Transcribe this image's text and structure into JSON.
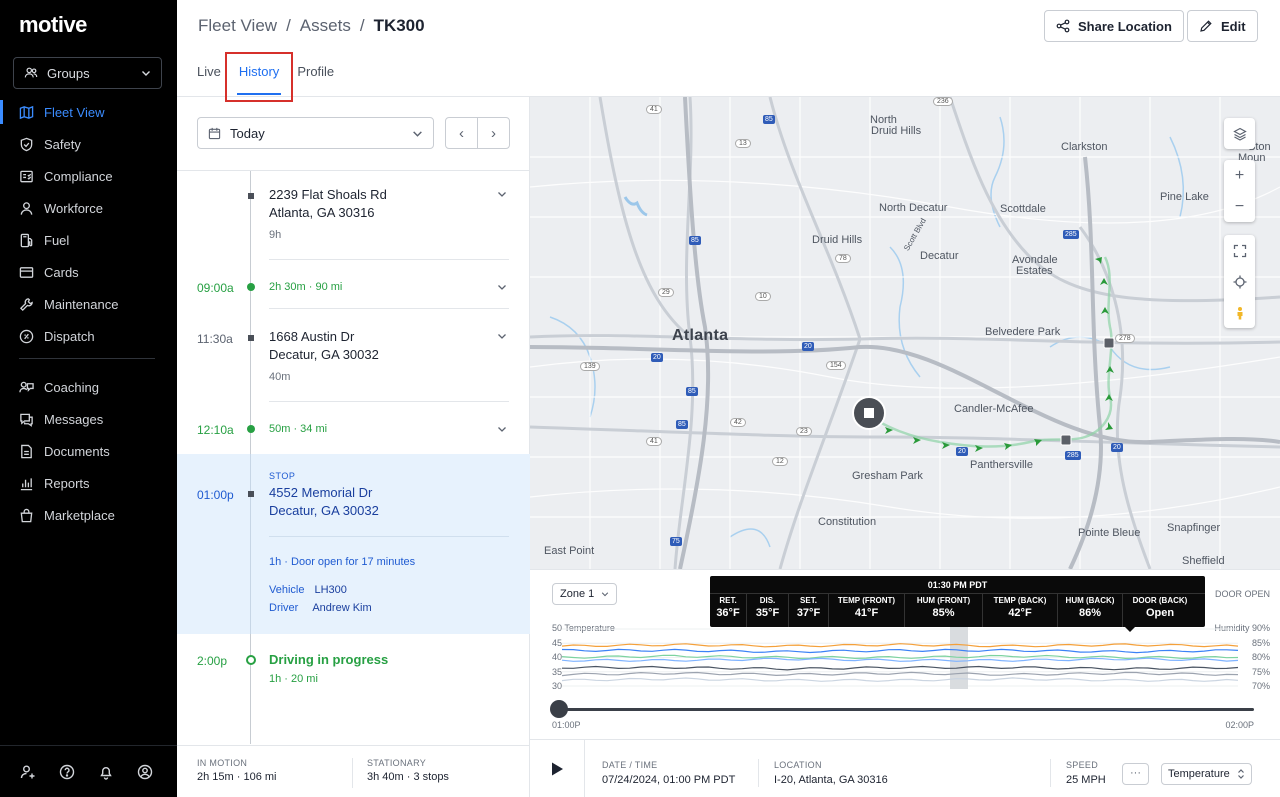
{
  "app": {
    "logo": "motive"
  },
  "sidebar": {
    "groups_label": "Groups",
    "items": [
      {
        "label": "Fleet View",
        "icon": "map-icon",
        "active": true
      },
      {
        "label": "Safety",
        "icon": "shield-icon"
      },
      {
        "label": "Compliance",
        "icon": "compliance-icon"
      },
      {
        "label": "Workforce",
        "icon": "person-icon"
      },
      {
        "label": "Fuel",
        "icon": "fuel-icon"
      },
      {
        "label": "Cards",
        "icon": "card-icon"
      },
      {
        "label": "Maintenance",
        "icon": "wrench-icon"
      },
      {
        "label": "Dispatch",
        "icon": "dispatch-icon"
      }
    ],
    "items2": [
      {
        "label": "Coaching",
        "icon": "coaching-icon"
      },
      {
        "label": "Messages",
        "icon": "message-icon"
      },
      {
        "label": "Documents",
        "icon": "document-icon"
      },
      {
        "label": "Reports",
        "icon": "reports-icon"
      },
      {
        "label": "Marketplace",
        "icon": "marketplace-icon"
      }
    ],
    "bottom_icons": [
      "user-settings-icon",
      "help-icon",
      "bell-icon",
      "account-icon"
    ]
  },
  "header": {
    "breadcrumb": [
      "Fleet View",
      "Assets",
      "TK300"
    ],
    "separator": "/",
    "share_label": "Share Location",
    "edit_label": "Edit",
    "tabs": [
      "Live",
      "History",
      "Profile"
    ],
    "active_tab": "History"
  },
  "left": {
    "date_label": "Today",
    "prev": "‹",
    "next": "›",
    "entries": {
      "e1": {
        "address1": "2239 Flat Shoals Rd",
        "address2": "Atlanta, GA 30316",
        "duration": "9h"
      },
      "e2": {
        "time": "09:00a",
        "summary": "2h 30m  ·  90 mi"
      },
      "e3": {
        "time": "11:30a",
        "address1": "1668 Austin Dr",
        "address2": "Decatur, GA 30032",
        "duration": "40m"
      },
      "e4": {
        "time": "12:10a",
        "summary": "50m  ·  34 mi"
      },
      "e5": {
        "time": "01:00p",
        "tag": "STOP",
        "address1": "4552 Memorial Dr",
        "address2": "Decatur, GA 30032",
        "detail": "1h  ·  Door open for 17 minutes",
        "vehicle_label": "Vehicle",
        "vehicle": "LH300",
        "driver_label": "Driver",
        "driver": "Andrew Kim"
      },
      "e6": {
        "time": "2:00p",
        "title": "Driving in progress",
        "summary": "1h  ·  20 mi"
      }
    },
    "stats": {
      "in_motion_label": "IN MOTION",
      "in_motion_value": "2h 15m  ·  106 mi",
      "stationary_label": "STATIONARY",
      "stationary_value": "3h 40m  ·  3 stops"
    }
  },
  "map": {
    "labels": {
      "atlanta": "Atlanta",
      "north_druid_hills_1": "North",
      "north_druid_hills_2": "Druid Hills",
      "clarkston": "Clarkston",
      "stone_mountain_1": "Ston",
      "stone_mountain_2": "Moun",
      "pine_lake": "Pine Lake",
      "north_decatur": "North Decatur",
      "scottdale": "Scottdale",
      "druid_hills": "Druid Hills",
      "decatur": "Decatur",
      "avondale_1": "Avondale",
      "avondale_2": "Estates",
      "belvedere": "Belvedere Park",
      "candler": "Candler-McAfee",
      "panthersville": "Panthersville",
      "gresham": "Gresham Park",
      "constitution": "Constitution",
      "pointe_bleue": "Pointe Bleue",
      "snapfinger": "Snapfinger",
      "east_point": "East Point",
      "sheffield": "Sheffield",
      "scott_blvd": "Scott Blvd"
    },
    "shields": {
      "s41a": "41",
      "s85a": "85",
      "s236": "236",
      "s85b": "85",
      "s285a": "285",
      "s78": "78",
      "s10": "10",
      "s29": "29",
      "s20a": "20",
      "s20b": "20",
      "s278": "278",
      "s139": "139",
      "s154": "154",
      "s85c": "85",
      "s42": "42",
      "s41b": "41",
      "s23": "23",
      "s85d": "85",
      "s20c": "20",
      "s285b": "285",
      "s20d": "20",
      "s12": "12",
      "s75": "75",
      "s13": "13"
    },
    "controls": [
      "layers-icon",
      "zoom-in-icon",
      "zoom-out-icon",
      "fullscreen-icon",
      "locate-icon",
      "street-view-icon"
    ]
  },
  "chart": {
    "zone_label": "Zone 1",
    "door_open_label": "DOOR OPEN",
    "tooltip": {
      "time": "01:30 PM PDT",
      "cells": [
        {
          "k": "RET.",
          "v": "36°F"
        },
        {
          "k": "DIS.",
          "v": "35°F"
        },
        {
          "k": "SET.",
          "v": "37°F"
        },
        {
          "k": "TEMP (FRONT)",
          "v": "41°F"
        },
        {
          "k": "HUM (FRONT)",
          "v": "85%"
        },
        {
          "k": "TEMP (BACK)",
          "v": "42°F"
        },
        {
          "k": "HUM (BACK)",
          "v": "86%"
        },
        {
          "k": "DOOR (BACK)",
          "v": "Open"
        }
      ]
    },
    "left_axis_title": "Temperature",
    "right_axis_title": "Humidity",
    "left_ticks": [
      "50",
      "45",
      "40",
      "35",
      "30"
    ],
    "right_ticks": [
      "90%",
      "85%",
      "80%",
      "75%",
      "70%"
    ],
    "time_start": "01:00P",
    "time_end": "02:00P"
  },
  "chart_data": {
    "type": "line",
    "x": [
      "01:00P",
      "01:10P",
      "01:20P",
      "01:30P",
      "01:40P",
      "01:50P",
      "02:00P"
    ],
    "series": [
      {
        "color": "#f4a03a",
        "values": [
          44,
          44.5,
          44,
          44.5,
          44,
          44.5,
          44
        ]
      },
      {
        "color": "#3b82f6",
        "values": [
          42.5,
          42.5,
          42,
          42.5,
          42.5,
          42,
          42.5
        ]
      },
      {
        "color": "#7dd3a0",
        "values": [
          40,
          40.5,
          40,
          40,
          40.5,
          40,
          40
        ]
      },
      {
        "color": "#7fb3ff",
        "values": [
          39,
          39,
          39.5,
          39,
          39,
          39.5,
          39
        ]
      },
      {
        "color": "#4b5563",
        "values": [
          36.5,
          36.5,
          36,
          36.5,
          36.5,
          36,
          36.5
        ]
      },
      {
        "color": "#9ca3af",
        "values": [
          34,
          34.5,
          34,
          34.5,
          34,
          34.5,
          34
        ]
      },
      {
        "color": "#cbd5e1",
        "values": [
          32,
          32.5,
          32,
          32,
          32.5,
          32,
          32
        ]
      }
    ],
    "ylim": [
      30,
      50
    ]
  },
  "bottom": {
    "datetime_label": "DATE / TIME",
    "datetime_value": "07/24/2024, 01:00 PM PDT",
    "location_label": "LOCATION",
    "location_value": "I-20, Atlanta, GA 30316",
    "speed_label": "SPEED",
    "speed_value": "25 MPH",
    "more": "···",
    "metric_select": "Temperature"
  }
}
